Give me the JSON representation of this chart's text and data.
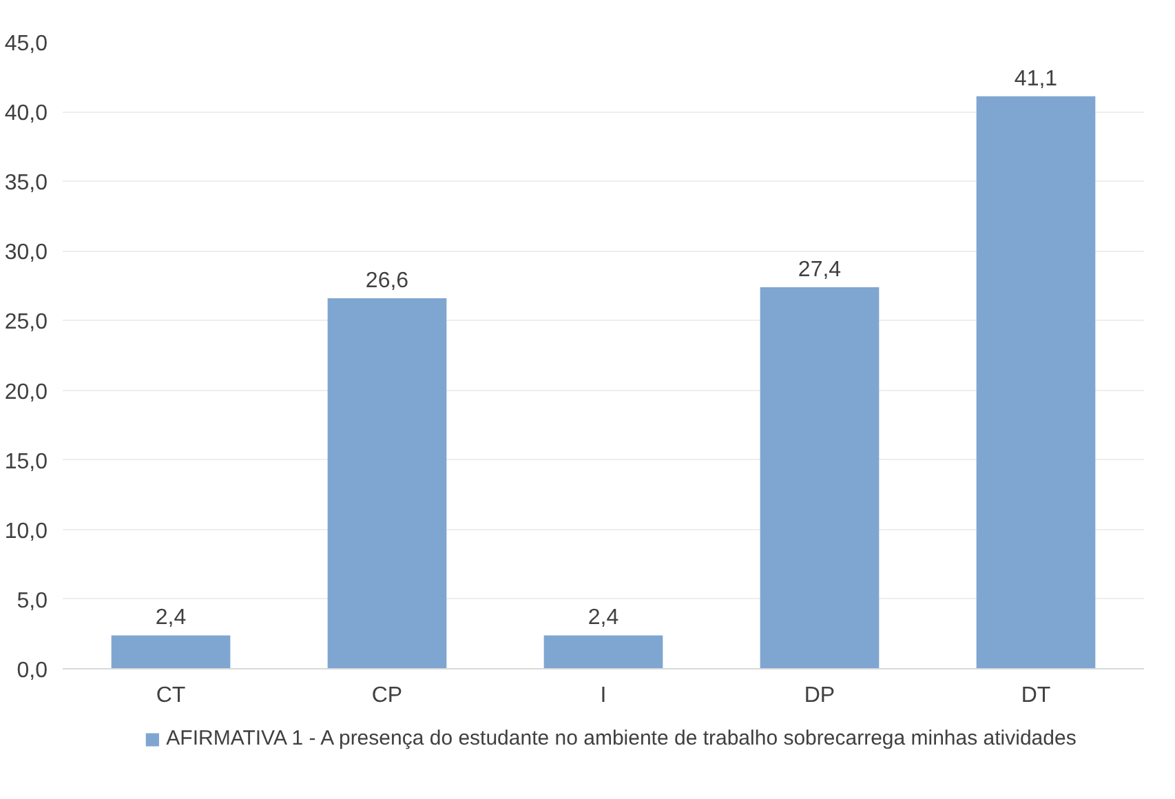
{
  "chart_data": {
    "type": "bar",
    "categories": [
      "CT",
      "CP",
      "I",
      "DP",
      "DT"
    ],
    "series": [
      {
        "name": "AFIRMATIVA 1 - A presença do estudante no ambiente de trabalho sobrecarrega minhas atividades",
        "color": "#7fa6d0",
        "values": [
          2.4,
          26.6,
          2.4,
          27.4,
          41.1
        ],
        "value_labels": [
          "2,4",
          "26,6",
          "2,4",
          "27,4",
          "41,1"
        ]
      }
    ],
    "ylim": [
      0,
      45
    ],
    "yticks": [
      {
        "value": 0,
        "label": "0,0"
      },
      {
        "value": 5,
        "label": "5,0"
      },
      {
        "value": 10,
        "label": "10,0"
      },
      {
        "value": 15,
        "label": "15,0"
      },
      {
        "value": 20,
        "label": "20,0"
      },
      {
        "value": 25,
        "label": "25,0"
      },
      {
        "value": 30,
        "label": "30,0"
      },
      {
        "value": 35,
        "label": "35,0"
      },
      {
        "value": 40,
        "label": "40,0"
      },
      {
        "value": 45,
        "label": "45,0"
      }
    ],
    "grid": "y",
    "legend": "bottom"
  }
}
